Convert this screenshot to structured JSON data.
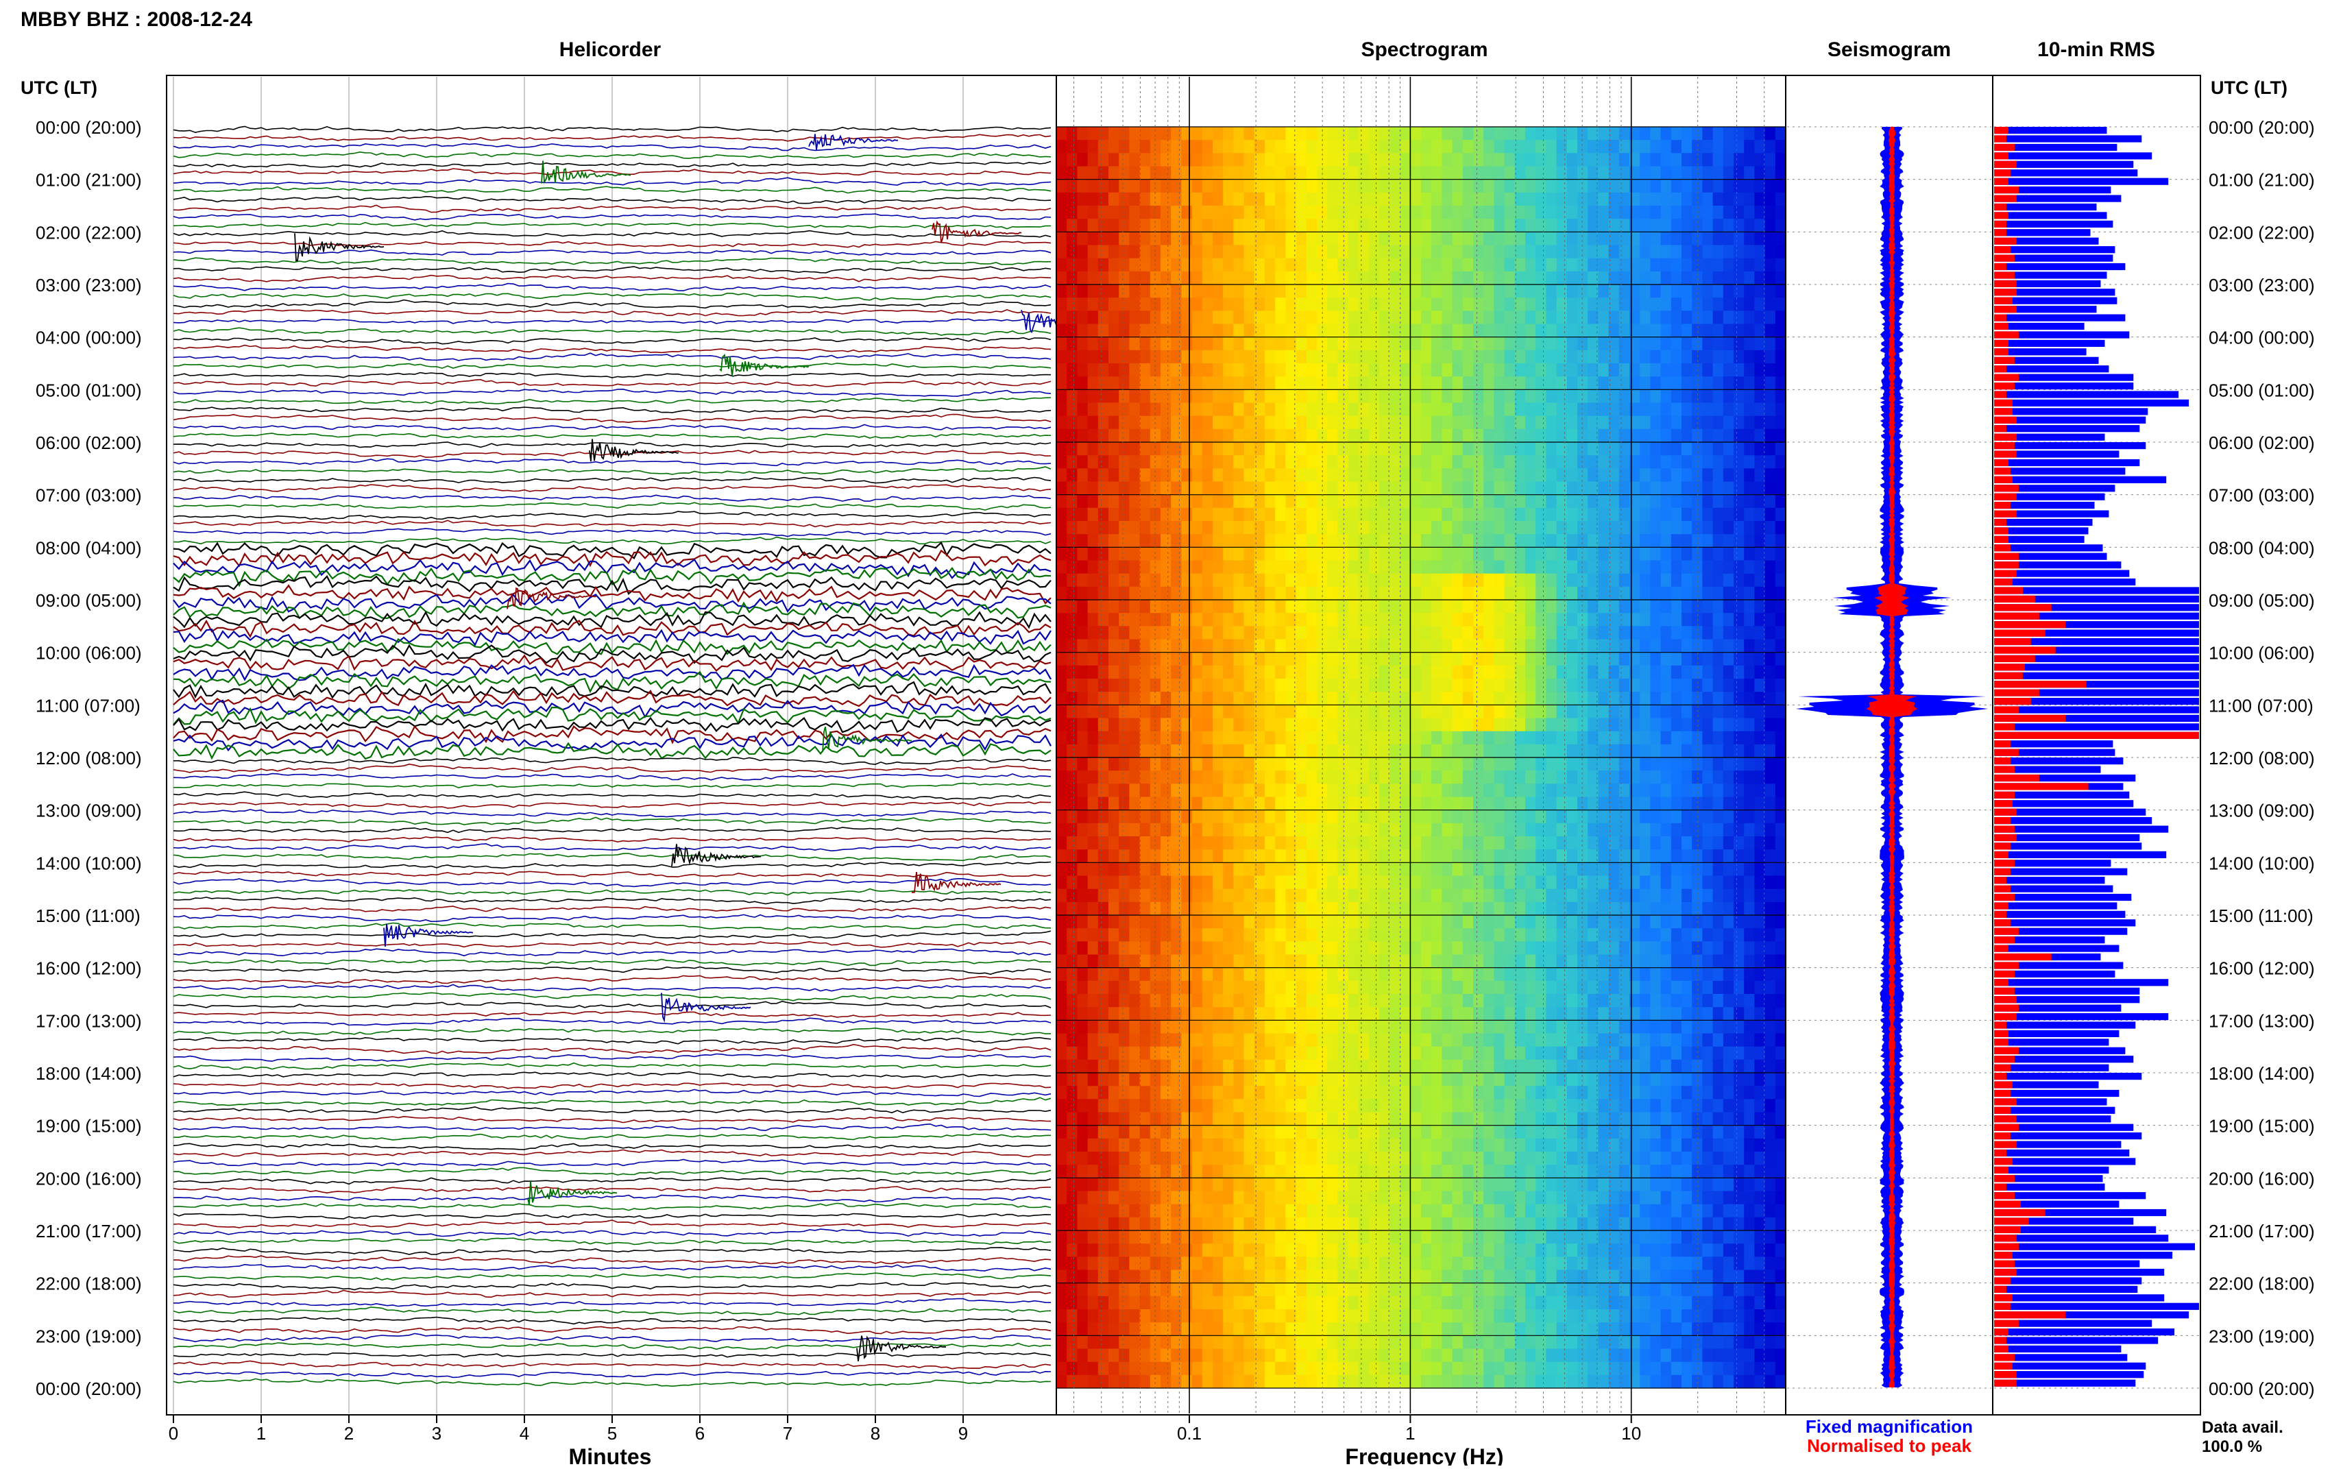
{
  "page_title": "MBBY BHZ : 2008-12-24",
  "panels": {
    "helicorder": "Helicorder",
    "spectrogram": "Spectrogram",
    "seismogram": "Seismogram",
    "rms": "10-min RMS"
  },
  "time_axis_label_left": "UTC (LT)",
  "time_axis_label_right": "UTC (LT)",
  "hour_labels": [
    "00:00 (20:00)",
    "01:00 (21:00)",
    "02:00 (22:00)",
    "03:00 (23:00)",
    "04:00 (00:00)",
    "05:00 (01:00)",
    "06:00 (02:00)",
    "07:00 (03:00)",
    "08:00 (04:00)",
    "09:00 (05:00)",
    "10:00 (06:00)",
    "11:00 (07:00)",
    "12:00 (08:00)",
    "13:00 (09:00)",
    "14:00 (10:00)",
    "15:00 (11:00)",
    "16:00 (12:00)",
    "17:00 (13:00)",
    "18:00 (14:00)",
    "19:00 (15:00)",
    "20:00 (16:00)",
    "21:00 (17:00)",
    "22:00 (18:00)",
    "23:00 (19:00)",
    "00:00 (20:00)"
  ],
  "legend": {
    "fixed": "Fixed magnification",
    "fixed_color": "#0000ff",
    "normalised": "Normalised to peak",
    "normalised_color": "#ff0000"
  },
  "data_avail": {
    "label": "Data avail.",
    "value": "100.0 %"
  },
  "chart_data": [
    {
      "type": "line",
      "panel": "Helicorder",
      "xlabel": "Minutes",
      "x_ticks": [
        "0",
        "1",
        "2",
        "3",
        "4",
        "5",
        "6",
        "7",
        "8",
        "9"
      ],
      "xlim": [
        0,
        10
      ],
      "traces_per_hour": 6,
      "trace_colors": [
        "#000000",
        "#8b0000",
        "#0000aa",
        "#007000"
      ],
      "active_hours": [
        8,
        9,
        10,
        11
      ]
    },
    {
      "type": "heatmap",
      "panel": "Spectrogram",
      "xlabel": "Frequency (Hz)",
      "x_scale": "log",
      "x_ticks": [
        "0.1",
        "1",
        "10"
      ],
      "xlim": [
        0.025,
        50
      ],
      "colormap": [
        "#cc0000",
        "#ff8800",
        "#ffee00",
        "#aaee33",
        "#33cccc",
        "#1177ff",
        "#0000cc"
      ],
      "peak_bands_hz": [
        2.5,
        3
      ]
    },
    {
      "type": "area",
      "panel": "Seismogram",
      "series": [
        {
          "name": "Fixed magnification",
          "color": "#0000ff"
        },
        {
          "name": "Normalised to peak",
          "color": "#ff0000"
        }
      ]
    },
    {
      "type": "bar",
      "panel": "10-min RMS",
      "series": [
        {
          "name": "Fixed magnification",
          "color": "#0000ff",
          "values": [
            0.55,
            0.72,
            0.6,
            0.77,
            0.68,
            0.7,
            0.85,
            0.57,
            0.62,
            0.5,
            0.55,
            0.58,
            0.47,
            0.51,
            0.59,
            0.58,
            0.64,
            0.55,
            0.52,
            0.59,
            0.6,
            0.5,
            0.64,
            0.44,
            0.66,
            0.54,
            0.45,
            0.51,
            0.56,
            0.68,
            0.68,
            0.9,
            0.95,
            0.75,
            0.74,
            0.71,
            0.54,
            0.74,
            0.61,
            0.71,
            0.64,
            0.84,
            0.59,
            0.54,
            0.49,
            0.56,
            0.48,
            0.46,
            0.44,
            0.53,
            0.55,
            0.62,
            0.66,
            0.69,
            1.0,
            1.0,
            1.0,
            1.0,
            1.0,
            1.0,
            1.0,
            1.0,
            1.0,
            1.0,
            1.0,
            1.0,
            1.0,
            1.0,
            1.0,
            1.0,
            1.0,
            1.0,
            0.58,
            0.59,
            0.63,
            0.52,
            0.69,
            0.63,
            0.66,
            0.68,
            0.74,
            0.77,
            0.85,
            0.71,
            0.72,
            0.84,
            0.57,
            0.65,
            0.54,
            0.58,
            0.67,
            0.6,
            0.64,
            0.69,
            0.65,
            0.54,
            0.61,
            0.52,
            0.63,
            0.59,
            0.85,
            0.71,
            0.71,
            0.62,
            0.85,
            0.69,
            0.61,
            0.56,
            0.64,
            0.68,
            0.56,
            0.72,
            0.51,
            0.61,
            0.55,
            0.59,
            0.57,
            0.68,
            0.72,
            0.62,
            0.66,
            0.69,
            0.56,
            0.53,
            0.54,
            0.74,
            0.61,
            0.84,
            0.68,
            0.79,
            0.85,
            0.98,
            0.87,
            0.71,
            0.83,
            0.72,
            0.7,
            0.83,
            1.0,
            0.95,
            0.77,
            0.88,
            0.8,
            0.62,
            0.65,
            0.74,
            0.73,
            0.69
          ]
        },
        {
          "name": "Normalised to peak",
          "color": "#ff0000",
          "values": [
            0.07,
            0.06,
            0.1,
            0.07,
            0.11,
            0.08,
            0.07,
            0.12,
            0.11,
            0.06,
            0.07,
            0.06,
            0.06,
            0.11,
            0.08,
            0.1,
            0.06,
            0.1,
            0.11,
            0.11,
            0.09,
            0.11,
            0.06,
            0.07,
            0.12,
            0.07,
            0.07,
            0.1,
            0.06,
            0.12,
            0.1,
            0.06,
            0.09,
            0.09,
            0.11,
            0.06,
            0.11,
            0.1,
            0.11,
            0.07,
            0.08,
            0.09,
            0.12,
            0.11,
            0.08,
            0.11,
            0.06,
            0.07,
            0.07,
            0.08,
            0.12,
            0.12,
            0.11,
            0.09,
            0.14,
            0.2,
            0.28,
            0.22,
            0.35,
            0.25,
            0.18,
            0.3,
            0.2,
            0.15,
            0.14,
            0.45,
            0.22,
            0.18,
            0.12,
            0.35,
            0.1,
            1.0,
            0.08,
            0.12,
            0.08,
            0.1,
            0.22,
            0.46,
            0.1,
            0.09,
            0.11,
            0.08,
            0.1,
            0.11,
            0.08,
            0.07,
            0.1,
            0.08,
            0.06,
            0.08,
            0.1,
            0.07,
            0.06,
            0.08,
            0.12,
            0.1,
            0.07,
            0.28,
            0.12,
            0.1,
            0.07,
            0.1,
            0.11,
            0.12,
            0.11,
            0.06,
            0.07,
            0.07,
            0.12,
            0.1,
            0.08,
            0.06,
            0.09,
            0.08,
            0.11,
            0.08,
            0.11,
            0.12,
            0.08,
            0.11,
            0.06,
            0.09,
            0.07,
            0.1,
            0.06,
            0.1,
            0.13,
            0.25,
            0.17,
            0.13,
            0.11,
            0.12,
            0.09,
            0.1,
            0.11,
            0.08,
            0.06,
            0.09,
            0.08,
            0.35,
            0.12,
            0.07,
            0.06,
            0.07,
            0.1,
            0.09,
            0.11,
            0.11
          ]
        }
      ]
    }
  ]
}
